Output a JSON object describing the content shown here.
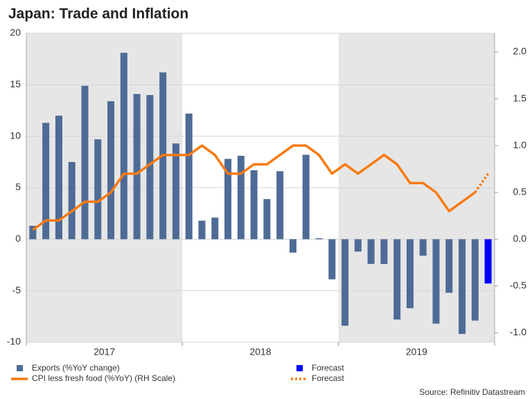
{
  "chart_data": {
    "type": "bar_line",
    "title": "Japan: Trade and Inflation",
    "source": "Source: Refinitiv Datastream",
    "year_labels": [
      "2017",
      "2018",
      "2019"
    ],
    "series": [
      {
        "name": "Exports (%YoY change)",
        "color": "#4e6b96",
        "kind": "bar",
        "values": [
          1.3,
          11.3,
          12.0,
          7.5,
          14.9,
          9.7,
          13.4,
          18.1,
          14.1,
          14.0,
          16.2,
          9.3,
          12.2,
          1.8,
          2.1,
          7.8,
          8.1,
          6.7,
          3.9,
          6.6,
          -1.3,
          8.2,
          0.1,
          -3.9,
          -8.4,
          -1.2,
          -2.4,
          -2.4,
          -7.8,
          -6.7,
          -1.6,
          -8.2,
          -5.2,
          -9.2,
          -7.9,
          null
        ]
      },
      {
        "name": "Forecast",
        "color": "#0000ff",
        "kind": "bar",
        "values": [
          null,
          null,
          null,
          null,
          null,
          null,
          null,
          null,
          null,
          null,
          null,
          null,
          null,
          null,
          null,
          null,
          null,
          null,
          null,
          null,
          null,
          null,
          null,
          null,
          null,
          null,
          null,
          null,
          null,
          null,
          null,
          null,
          null,
          null,
          null,
          -4.3
        ]
      },
      {
        "name": "CPI less fresh food (%YoY) (RH Scale)",
        "color": "#f77a10",
        "kind": "line",
        "axis": "y2",
        "values": [
          0.1,
          0.2,
          0.2,
          0.3,
          0.4,
          0.4,
          0.5,
          0.7,
          0.7,
          0.8,
          0.9,
          0.9,
          0.9,
          1.0,
          0.9,
          0.7,
          0.7,
          0.8,
          0.8,
          0.9,
          1.0,
          1.0,
          0.9,
          0.7,
          0.8,
          0.7,
          0.8,
          0.9,
          0.8,
          0.6,
          0.6,
          0.5,
          0.3,
          0.4,
          0.5,
          null
        ]
      },
      {
        "name": "Forecast",
        "color": "#f77a10",
        "kind": "line",
        "dashed": true,
        "axis": "y2",
        "values": [
          null,
          null,
          null,
          null,
          null,
          null,
          null,
          null,
          null,
          null,
          null,
          null,
          null,
          null,
          null,
          null,
          null,
          null,
          null,
          null,
          null,
          null,
          null,
          null,
          null,
          null,
          null,
          null,
          null,
          null,
          null,
          null,
          null,
          null,
          0.5,
          0.7
        ]
      }
    ],
    "ylim": [
      -10,
      20
    ],
    "yticks": [
      -10,
      -5,
      0,
      5,
      10,
      15,
      20
    ],
    "y2lim": [
      -1.1,
      2.2
    ],
    "y2ticks": [
      {
        "value": -1,
        "label": "-1.0"
      },
      -0.5,
      {
        "value": 0,
        "label": "0.0"
      },
      0.5,
      {
        "value": 1,
        "label": "1.0"
      },
      1.5,
      {
        "value": 2,
        "label": "2.0"
      }
    ],
    "grid": true
  }
}
